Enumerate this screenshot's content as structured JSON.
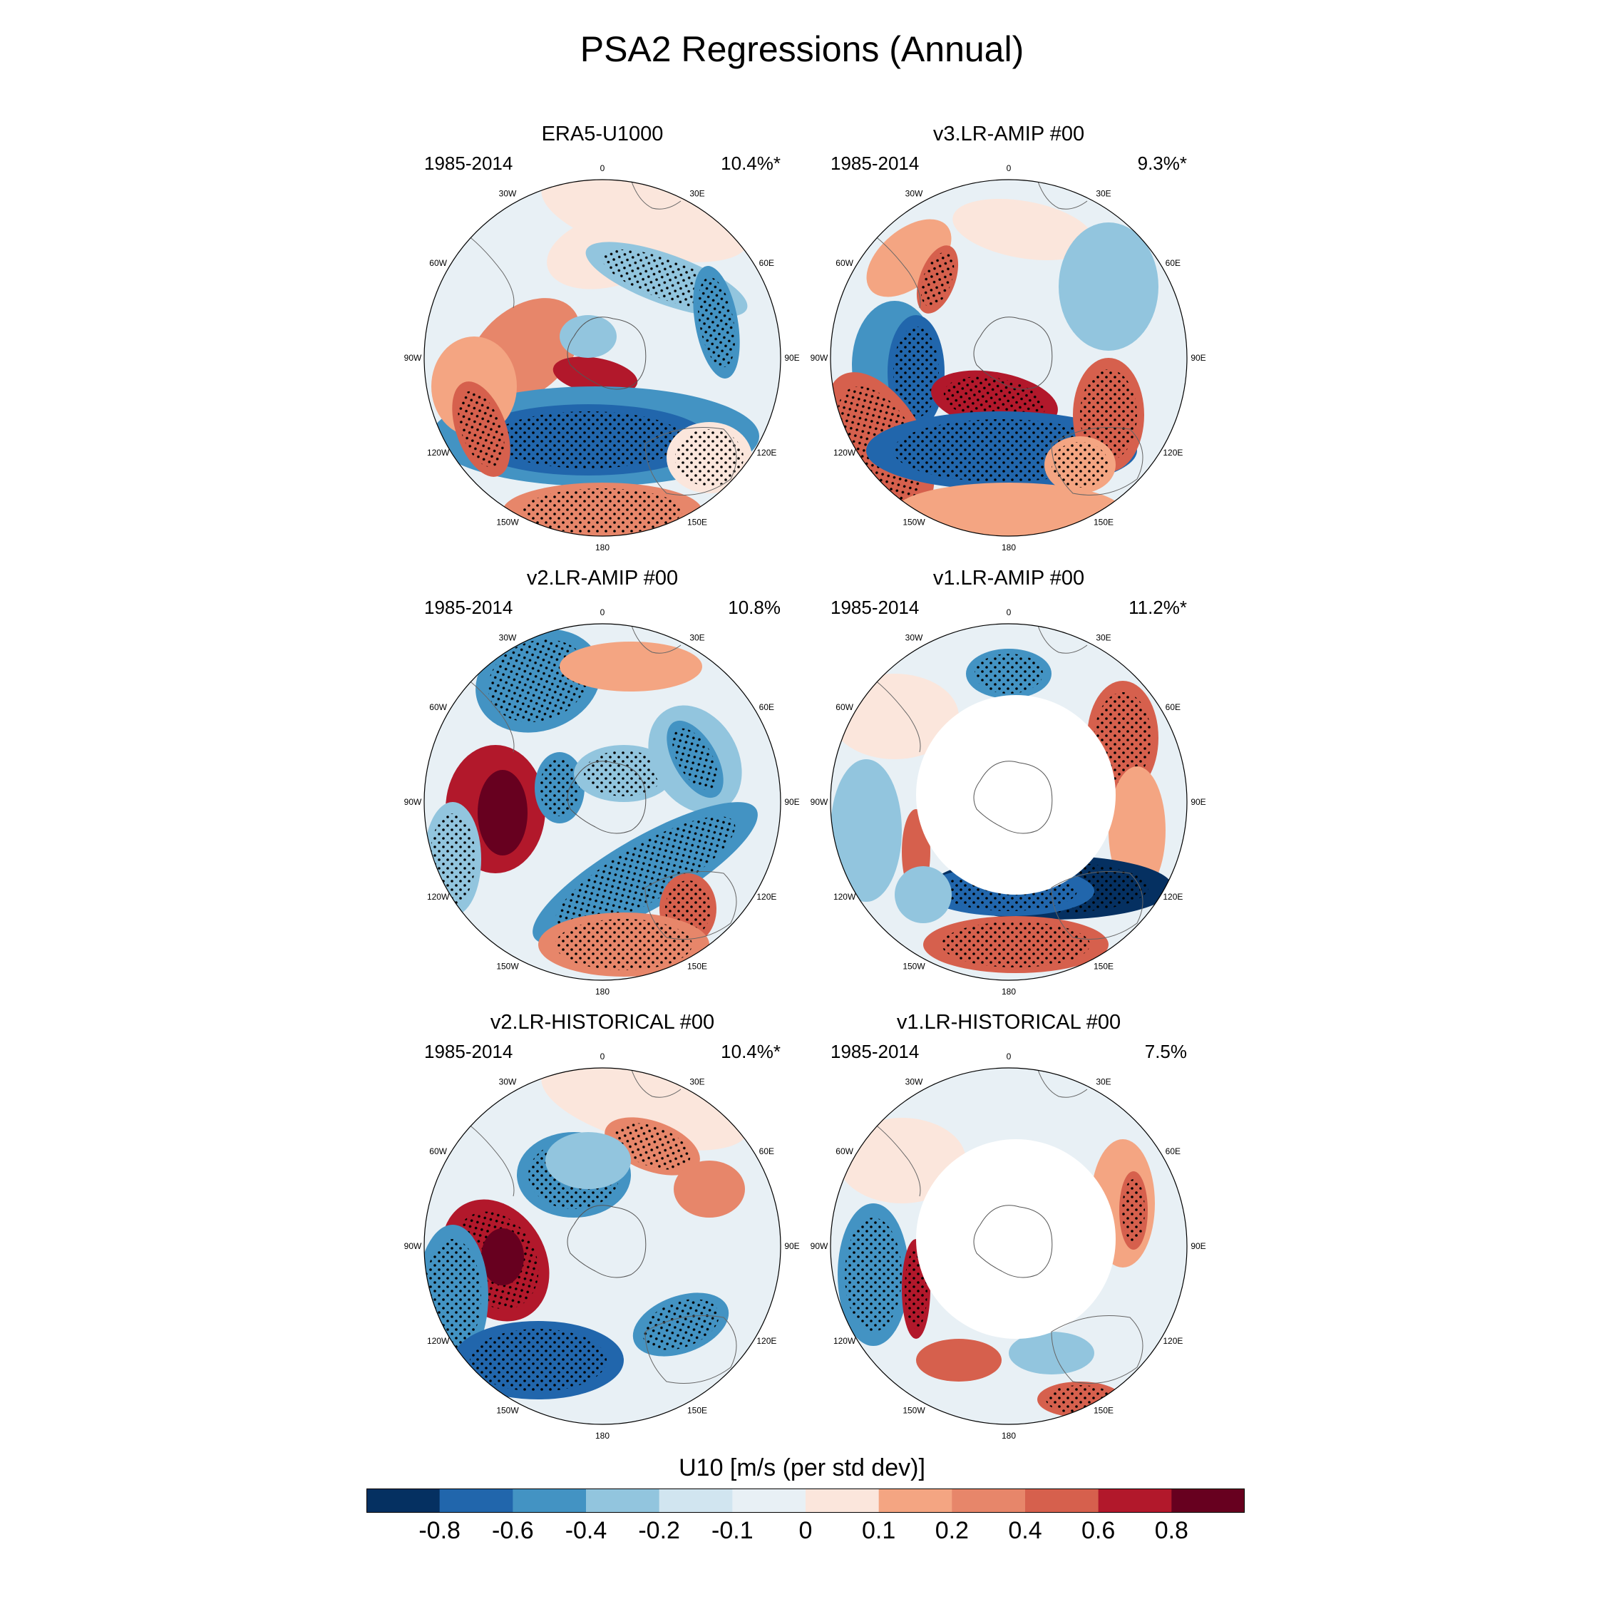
{
  "title": "PSA2 Regressions (Annual)",
  "chart_data": {
    "type": "polar-map-panels",
    "title": "PSA2 Regressions (Annual)",
    "variable_label": "U10 [m/s (per std dev)]",
    "colorbar": {
      "levels": [
        "-0.8",
        "-0.6",
        "-0.4",
        "-0.2",
        "-0.1",
        "0",
        "0.1",
        "0.2",
        "0.4",
        "0.6",
        "0.8"
      ],
      "colors": [
        "#053061",
        "#2166ac",
        "#4393c3",
        "#92c5de",
        "#d1e5f0",
        "#e8f0f5",
        "#fbe6dc",
        "#f4a582",
        "#e7866a",
        "#d6604d",
        "#b2182b",
        "#67001f"
      ]
    },
    "longitude_labels": [
      "0",
      "30E",
      "60E",
      "90E",
      "120E",
      "150E",
      "180",
      "150W",
      "120W",
      "90W",
      "60W",
      "30W"
    ],
    "panels": [
      {
        "name": "ERA5-U1000",
        "period": "1985-2014",
        "variance": "10.4%*",
        "masked_center": false
      },
      {
        "name": "v3.LR-AMIP  #00",
        "period": "1985-2014",
        "variance": "9.3%*",
        "masked_center": false
      },
      {
        "name": "v2.LR-AMIP  #00",
        "period": "1985-2014",
        "variance": "10.8%",
        "masked_center": false
      },
      {
        "name": "v1.LR-AMIP  #00",
        "period": "1985-2014",
        "variance": "11.2%*",
        "masked_center": true
      },
      {
        "name": "v2.LR-HISTORICAL  #00",
        "period": "1985-2014",
        "variance": "10.4%*",
        "masked_center": false
      },
      {
        "name": "v1.LR-HISTORICAL  #00",
        "period": "1985-2014",
        "variance": "7.5%",
        "masked_center": true
      }
    ]
  }
}
